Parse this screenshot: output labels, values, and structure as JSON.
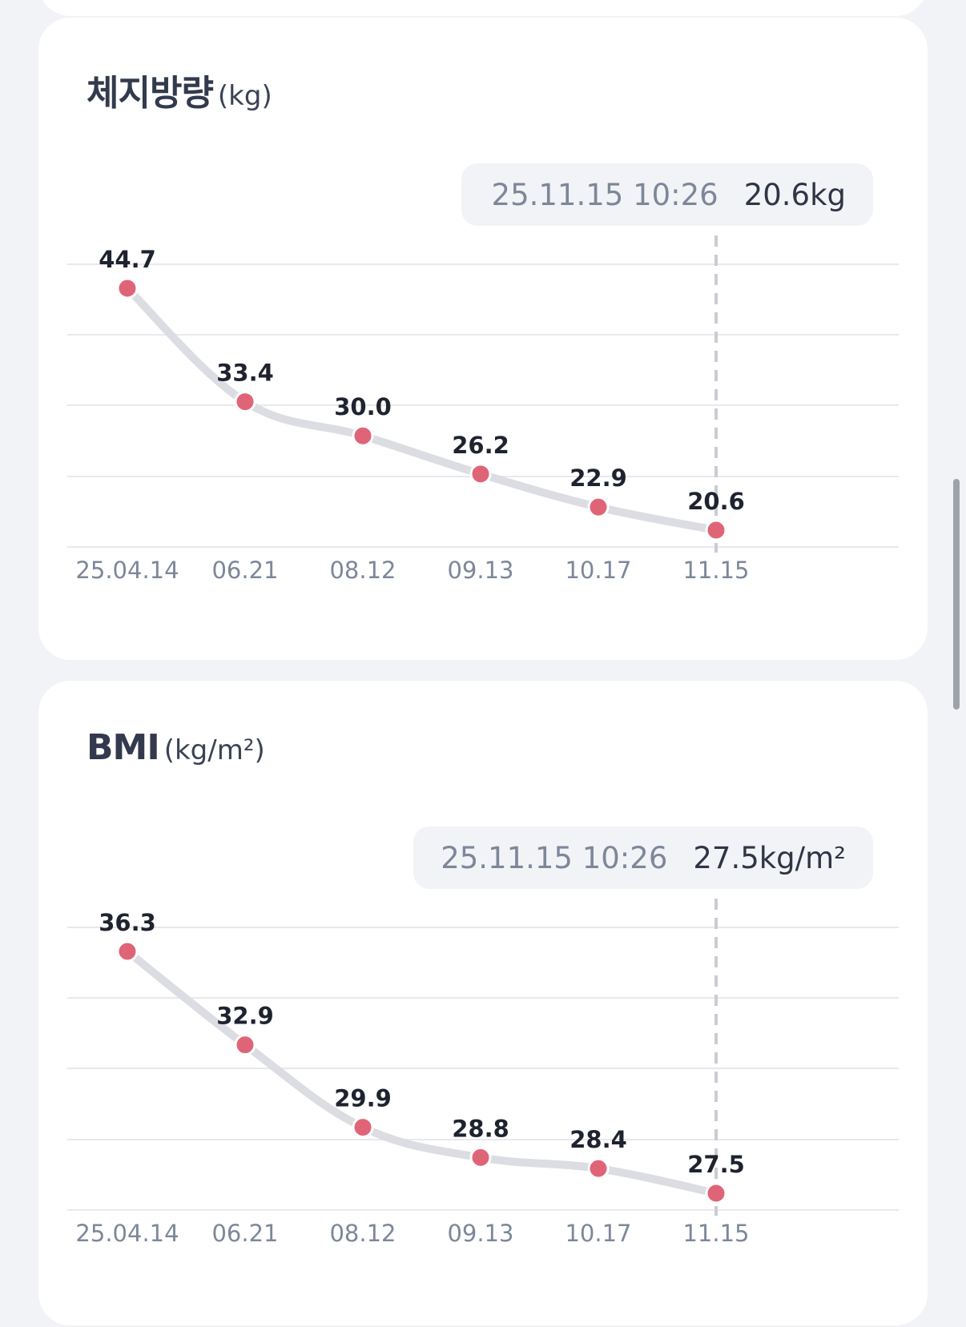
{
  "cards": [
    {
      "title": "체지방량",
      "unit": "(kg)",
      "tooltip": {
        "time": "25.11.15 10:26",
        "value": "20.6kg"
      },
      "chart_data": {
        "type": "line",
        "title": "체지방량",
        "unit": "kg",
        "categories": [
          "25.04.14",
          "06.21",
          "08.12",
          "09.13",
          "10.17",
          "11.15"
        ],
        "series": [
          {
            "values": [
              44.7,
              33.4,
              30.0,
              26.2,
              22.9,
              20.6
            ]
          }
        ],
        "value_labels": [
          "44.7",
          "33.4",
          "30.0",
          "26.2",
          "22.9",
          "20.6"
        ],
        "selected_index": 5,
        "grid": true
      }
    },
    {
      "title": "BMI",
      "unit": "(kg/m²)",
      "tooltip": {
        "time": "25.11.15 10:26",
        "value": "27.5kg/m²"
      },
      "chart_data": {
        "type": "line",
        "title": "BMI",
        "unit": "kg/m²",
        "categories": [
          "25.04.14",
          "06.21",
          "08.12",
          "09.13",
          "10.17",
          "11.15"
        ],
        "series": [
          {
            "values": [
              36.3,
              32.9,
              29.9,
              28.8,
              28.4,
              27.5
            ]
          }
        ],
        "value_labels": [
          "36.3",
          "32.9",
          "29.9",
          "28.8",
          "28.4",
          "27.5"
        ],
        "selected_index": 5,
        "grid": true
      }
    }
  ],
  "colors": {
    "point": "#e06477",
    "line": "#dcdde2",
    "grid": "#e8e9ec",
    "crosshair": "#c9ccd2",
    "axis_text": "#7d8799",
    "value_text": "#1f2330"
  }
}
